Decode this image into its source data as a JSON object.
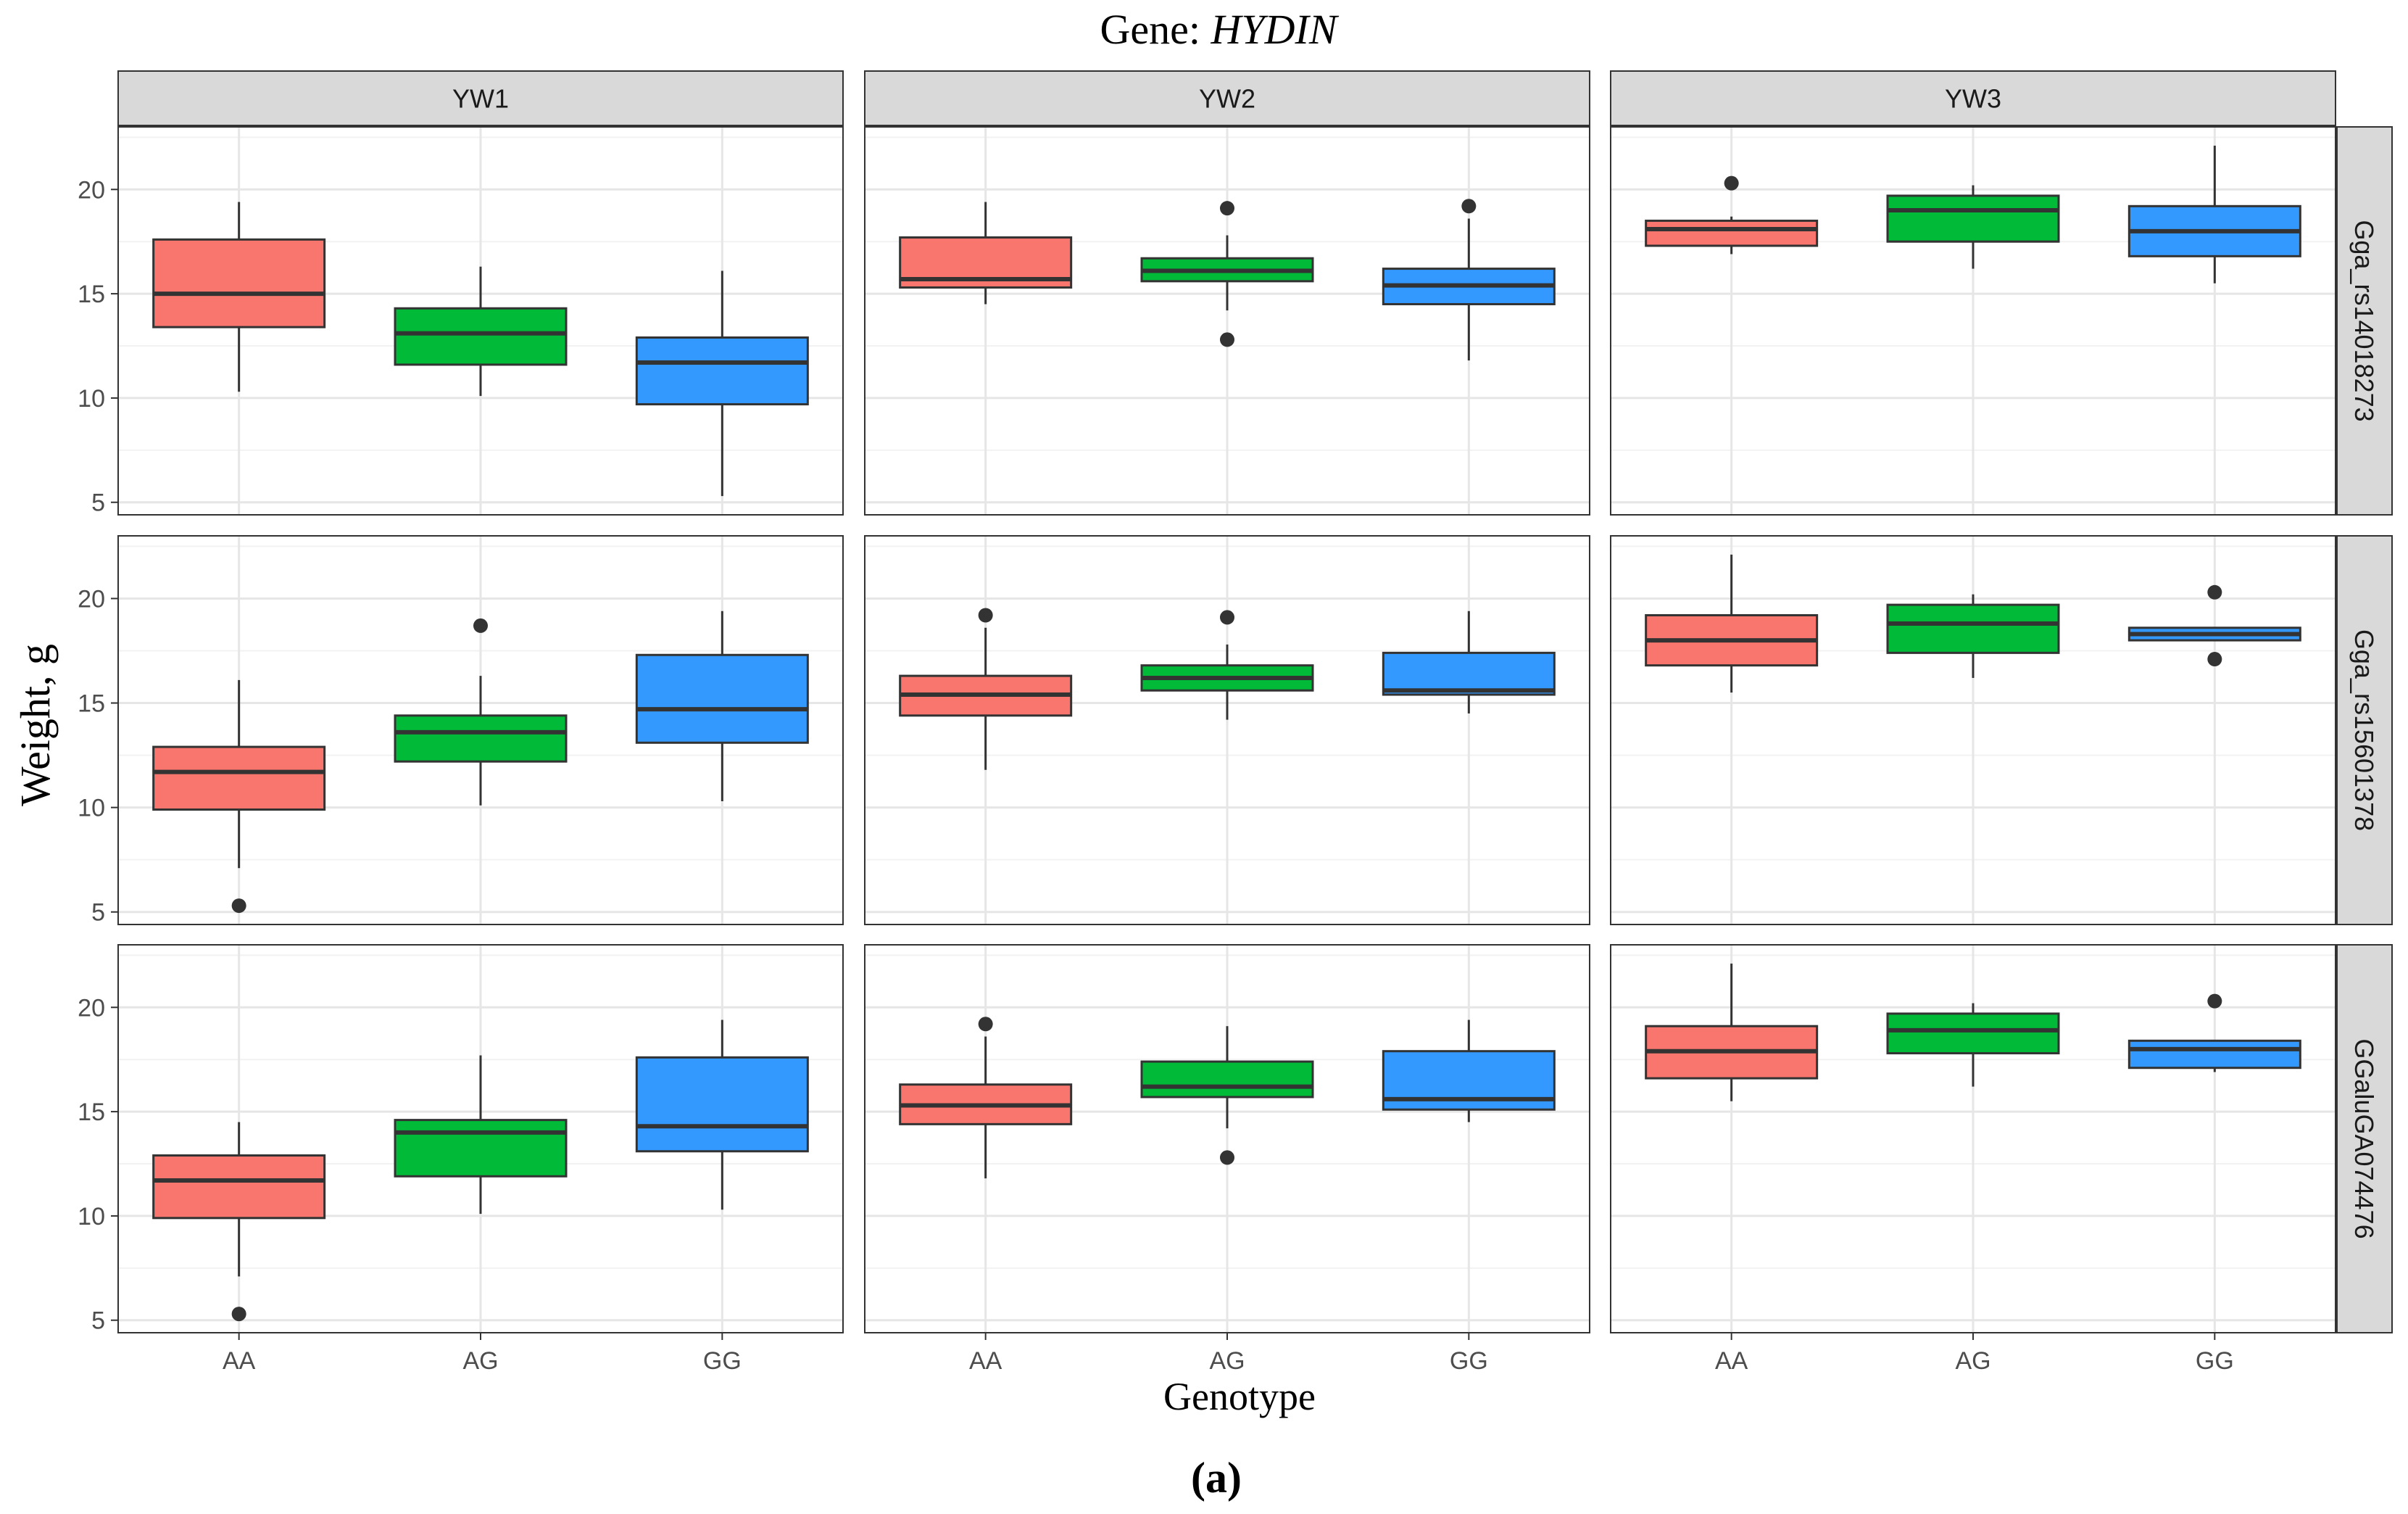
{
  "figure": {
    "title_prefix": "Gene: ",
    "title_gene": "HYDIN",
    "sublabel": "(a)"
  },
  "chart_data": {
    "type": "boxplot",
    "title": "Gene: HYDIN",
    "xlabel": "Genotype",
    "ylabel": "Weight, g",
    "categories": [
      "AA",
      "AG",
      "GG"
    ],
    "colors": {
      "AA": "#F8766D",
      "AG": "#00BA38",
      "GG": "#3399FF"
    },
    "ylim": [
      4.4,
      23.0
    ],
    "yticks": [
      5,
      10,
      15,
      20
    ],
    "grid": true,
    "facet_columns": [
      "YW1",
      "YW2",
      "YW3"
    ],
    "facet_rows": [
      "Gga_rs14018273",
      "Gga_rs15601378",
      "GGaluGA074476"
    ],
    "panels": [
      {
        "row": "Gga_rs14018273",
        "col": "YW1",
        "boxes": [
          {
            "genotype": "AA",
            "lower_whisker": 10.3,
            "q1": 13.4,
            "median": 15.0,
            "q3": 17.6,
            "upper_whisker": 19.4,
            "outliers": []
          },
          {
            "genotype": "AG",
            "lower_whisker": 10.1,
            "q1": 11.6,
            "median": 13.1,
            "q3": 14.3,
            "upper_whisker": 16.3,
            "outliers": []
          },
          {
            "genotype": "GG",
            "lower_whisker": 5.3,
            "q1": 9.7,
            "median": 11.7,
            "q3": 12.9,
            "upper_whisker": 16.1,
            "outliers": []
          }
        ]
      },
      {
        "row": "Gga_rs14018273",
        "col": "YW2",
        "boxes": [
          {
            "genotype": "AA",
            "lower_whisker": 14.5,
            "q1": 15.3,
            "median": 15.7,
            "q3": 17.7,
            "upper_whisker": 19.4,
            "outliers": []
          },
          {
            "genotype": "AG",
            "lower_whisker": 14.2,
            "q1": 15.6,
            "median": 16.1,
            "q3": 16.7,
            "upper_whisker": 17.8,
            "outliers": [
              19.1,
              12.8
            ]
          },
          {
            "genotype": "GG",
            "lower_whisker": 11.8,
            "q1": 14.5,
            "median": 15.4,
            "q3": 16.2,
            "upper_whisker": 18.6,
            "outliers": [
              19.2
            ]
          }
        ]
      },
      {
        "row": "Gga_rs14018273",
        "col": "YW3",
        "boxes": [
          {
            "genotype": "AA",
            "lower_whisker": 16.9,
            "q1": 17.3,
            "median": 18.1,
            "q3": 18.5,
            "upper_whisker": 18.7,
            "outliers": [
              20.3
            ]
          },
          {
            "genotype": "AG",
            "lower_whisker": 16.2,
            "q1": 17.5,
            "median": 19.0,
            "q3": 19.7,
            "upper_whisker": 20.2,
            "outliers": []
          },
          {
            "genotype": "GG",
            "lower_whisker": 15.5,
            "q1": 16.8,
            "median": 18.0,
            "q3": 19.2,
            "upper_whisker": 22.1,
            "outliers": []
          }
        ]
      },
      {
        "row": "Gga_rs15601378",
        "col": "YW1",
        "boxes": [
          {
            "genotype": "AA",
            "lower_whisker": 7.1,
            "q1": 9.9,
            "median": 11.7,
            "q3": 12.9,
            "upper_whisker": 16.1,
            "outliers": [
              5.3
            ]
          },
          {
            "genotype": "AG",
            "lower_whisker": 10.1,
            "q1": 12.2,
            "median": 13.6,
            "q3": 14.4,
            "upper_whisker": 16.3,
            "outliers": [
              18.7
            ]
          },
          {
            "genotype": "GG",
            "lower_whisker": 10.3,
            "q1": 13.1,
            "median": 14.7,
            "q3": 17.3,
            "upper_whisker": 19.4,
            "outliers": []
          }
        ]
      },
      {
        "row": "Gga_rs15601378",
        "col": "YW2",
        "boxes": [
          {
            "genotype": "AA",
            "lower_whisker": 11.8,
            "q1": 14.4,
            "median": 15.4,
            "q3": 16.3,
            "upper_whisker": 18.6,
            "outliers": [
              19.2
            ]
          },
          {
            "genotype": "AG",
            "lower_whisker": 14.2,
            "q1": 15.6,
            "median": 16.2,
            "q3": 16.8,
            "upper_whisker": 17.8,
            "outliers": [
              19.1
            ]
          },
          {
            "genotype": "GG",
            "lower_whisker": 14.5,
            "q1": 15.4,
            "median": 15.6,
            "q3": 17.4,
            "upper_whisker": 19.4,
            "outliers": []
          }
        ]
      },
      {
        "row": "Gga_rs15601378",
        "col": "YW3",
        "boxes": [
          {
            "genotype": "AA",
            "lower_whisker": 15.5,
            "q1": 16.8,
            "median": 18.0,
            "q3": 19.2,
            "upper_whisker": 22.1,
            "outliers": []
          },
          {
            "genotype": "AG",
            "lower_whisker": 16.2,
            "q1": 17.4,
            "median": 18.8,
            "q3": 19.7,
            "upper_whisker": 20.2,
            "outliers": []
          },
          {
            "genotype": "GG",
            "lower_whisker": 18.0,
            "q1": 18.0,
            "median": 18.3,
            "q3": 18.6,
            "upper_whisker": 18.6,
            "outliers": [
              20.3,
              17.1
            ]
          }
        ]
      },
      {
        "row": "GGaluGA074476",
        "col": "YW1",
        "boxes": [
          {
            "genotype": "AA",
            "lower_whisker": 7.1,
            "q1": 9.9,
            "median": 11.7,
            "q3": 12.9,
            "upper_whisker": 14.5,
            "outliers": [
              5.3
            ]
          },
          {
            "genotype": "AG",
            "lower_whisker": 10.1,
            "q1": 11.9,
            "median": 14.0,
            "q3": 14.6,
            "upper_whisker": 17.7,
            "outliers": []
          },
          {
            "genotype": "GG",
            "lower_whisker": 10.3,
            "q1": 13.1,
            "median": 14.3,
            "q3": 17.6,
            "upper_whisker": 19.4,
            "outliers": []
          }
        ]
      },
      {
        "row": "GGaluGA074476",
        "col": "YW2",
        "boxes": [
          {
            "genotype": "AA",
            "lower_whisker": 11.8,
            "q1": 14.4,
            "median": 15.3,
            "q3": 16.3,
            "upper_whisker": 18.6,
            "outliers": [
              19.2
            ]
          },
          {
            "genotype": "AG",
            "lower_whisker": 14.2,
            "q1": 15.7,
            "median": 16.2,
            "q3": 17.4,
            "upper_whisker": 19.1,
            "outliers": [
              12.8
            ]
          },
          {
            "genotype": "GG",
            "lower_whisker": 14.5,
            "q1": 15.1,
            "median": 15.6,
            "q3": 17.9,
            "upper_whisker": 19.4,
            "outliers": []
          }
        ]
      },
      {
        "row": "GGaluGA074476",
        "col": "YW3",
        "boxes": [
          {
            "genotype": "AA",
            "lower_whisker": 15.5,
            "q1": 16.6,
            "median": 17.9,
            "q3": 19.1,
            "upper_whisker": 22.1,
            "outliers": []
          },
          {
            "genotype": "AG",
            "lower_whisker": 16.2,
            "q1": 17.8,
            "median": 18.9,
            "q3": 19.7,
            "upper_whisker": 20.2,
            "outliers": []
          },
          {
            "genotype": "GG",
            "lower_whisker": 16.9,
            "q1": 17.1,
            "median": 18.0,
            "q3": 18.4,
            "upper_whisker": 18.4,
            "outliers": [
              20.3
            ]
          }
        ]
      }
    ]
  }
}
